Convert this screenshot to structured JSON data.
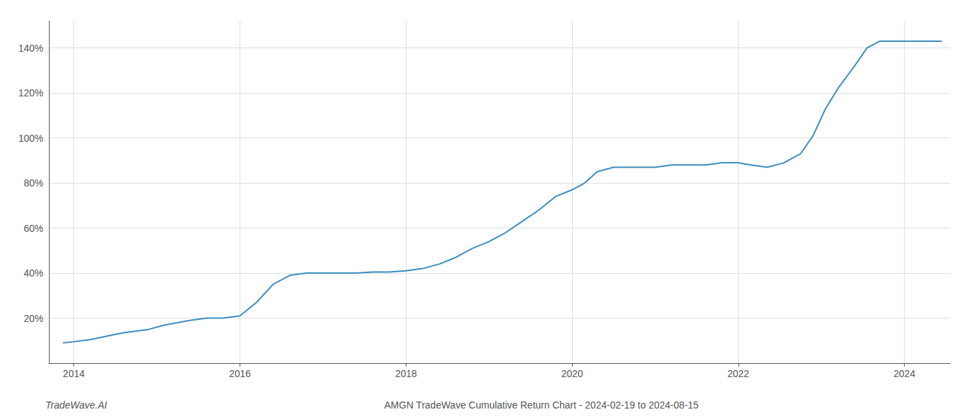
{
  "chart_data": {
    "type": "line",
    "title": "AMGN TradeWave Cumulative Return Chart - 2024-02-19 to 2024-08-15",
    "annotations": [
      "TradeWave.AI"
    ],
    "x": [
      2013.87,
      2014.0,
      2014.2,
      2014.4,
      2014.6,
      2014.9,
      2015.1,
      2015.4,
      2015.6,
      2015.8,
      2016.0,
      2016.2,
      2016.4,
      2016.6,
      2016.8,
      2016.9,
      2017.0,
      2017.2,
      2017.4,
      2017.6,
      2017.8,
      2018.0,
      2018.2,
      2018.4,
      2018.6,
      2018.8,
      2019.0,
      2019.2,
      2019.4,
      2019.6,
      2019.8,
      2020.0,
      2020.15,
      2020.3,
      2020.5,
      2020.65,
      2020.8,
      2021.0,
      2021.2,
      2021.4,
      2021.6,
      2021.8,
      2022.0,
      2022.15,
      2022.35,
      2022.55,
      2022.75,
      2022.9,
      2023.05,
      2023.2,
      2023.4,
      2023.55,
      2023.7,
      2023.85,
      2024.0,
      2024.2,
      2024.45
    ],
    "values": [
      9,
      9.5,
      10.5,
      12,
      13.5,
      15,
      17,
      19,
      20,
      20,
      21,
      27,
      35,
      39,
      40,
      40,
      40,
      40,
      40,
      40.5,
      40.5,
      41,
      42,
      44,
      47,
      51,
      54,
      58,
      63,
      68,
      74,
      77,
      80,
      85,
      87,
      87,
      87,
      87,
      88,
      88,
      88,
      89,
      89,
      88,
      87,
      89,
      93,
      101,
      113,
      122,
      132,
      140,
      143,
      143,
      143,
      143,
      143
    ],
    "color": "#3a8cbf",
    "xlim": [
      2013.7,
      2024.55
    ],
    "xticks": [
      2014,
      2016,
      2018,
      2020,
      2022,
      2024
    ],
    "ylim": [
      0,
      152
    ],
    "yticks": [
      {
        "value": 20,
        "label": "20%"
      },
      {
        "value": 40,
        "label": "40%"
      },
      {
        "value": 60,
        "label": "60%"
      },
      {
        "value": 80,
        "label": "80%"
      },
      {
        "value": 100,
        "label": "100%"
      },
      {
        "value": 120,
        "label": "120%"
      },
      {
        "value": 140,
        "label": "140%"
      }
    ],
    "grid": true
  }
}
